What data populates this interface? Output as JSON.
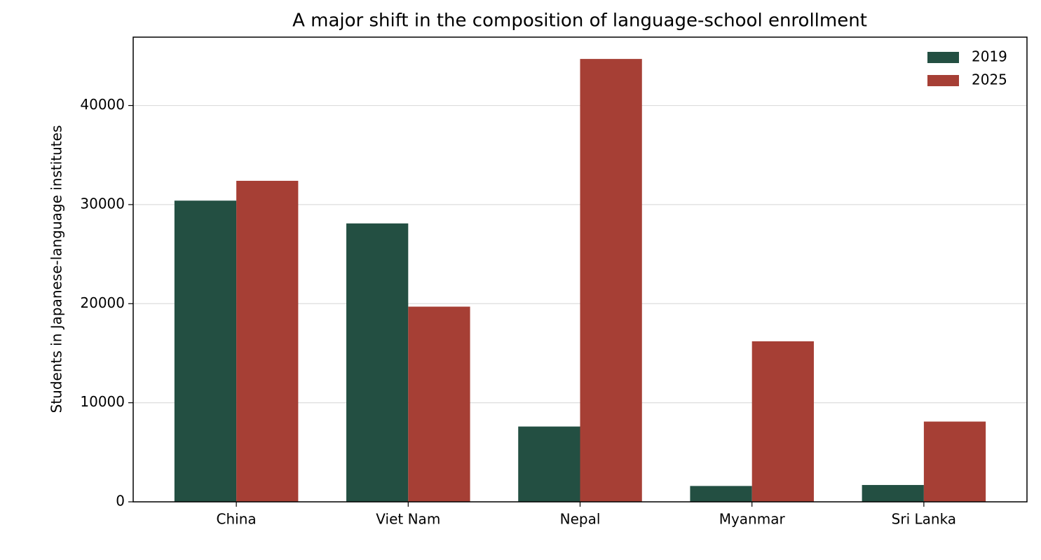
{
  "chart_data": {
    "type": "bar",
    "title": "A major shift in the composition of language-school enrollment",
    "y_label": "Students in Japanese-language institutes",
    "categories": [
      "China",
      "Viet Nam",
      "Nepal",
      "Myanmar",
      "Sri Lanka"
    ],
    "series": [
      {
        "name": "2019",
        "color": "#234f42",
        "values": [
          30400,
          28100,
          7600,
          1600,
          1700
        ]
      },
      {
        "name": "2025",
        "color": "#a63f35",
        "values": [
          32400,
          19700,
          44700,
          16200,
          8100
        ]
      }
    ],
    "ylim": [
      0,
      46900
    ],
    "yticks": [
      0,
      10000,
      20000,
      30000,
      40000
    ],
    "grid": true,
    "legend": "upper-right"
  }
}
